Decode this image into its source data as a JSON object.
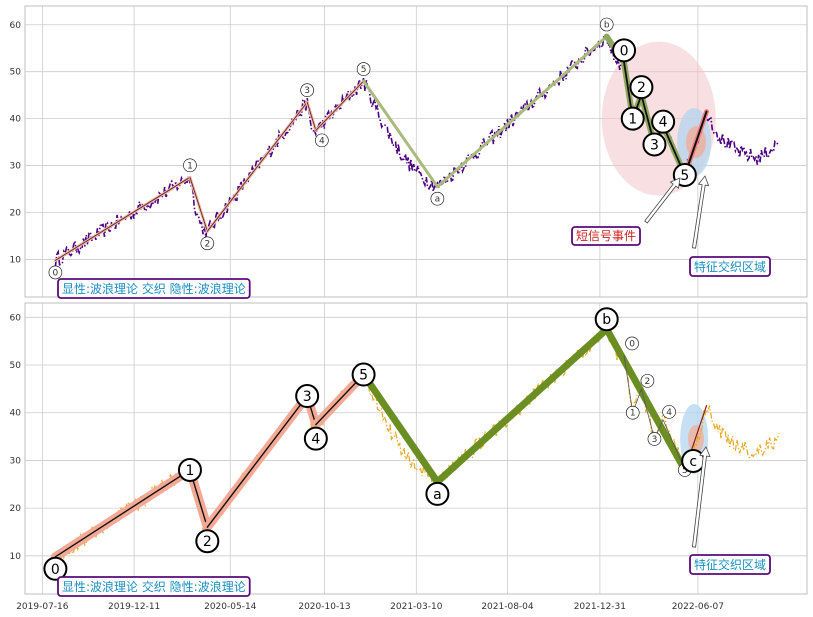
{
  "chart_data": [
    {
      "type": "line",
      "panel": "top",
      "ylim": [
        2,
        64
      ],
      "yticks": [
        10,
        20,
        30,
        40,
        50,
        60
      ],
      "grid": true,
      "price_color": "#4b0082",
      "price_style": "dash-dot",
      "waves": [
        {
          "label": "0",
          "x": "2019-08-06",
          "y": 9.8
        },
        {
          "label": "1",
          "x": "2020-03-10",
          "y": 27.5
        },
        {
          "label": "2",
          "x": "2020-04-07",
          "y": 16.0
        },
        {
          "label": "3",
          "x": "2020-09-15",
          "y": 43.5
        },
        {
          "label": "4",
          "x": "2020-09-29",
          "y": 37.5
        },
        {
          "label": "5",
          "x": "2020-12-15",
          "y": 48.0
        },
        {
          "label": "a",
          "x": "2021-04-13",
          "y": 25.5
        },
        {
          "label": "b",
          "x": "2022-01-11",
          "y": 57.5
        },
        {
          "label": "0",
          "x": "2022-02-08",
          "y": 52.0
        },
        {
          "label": "1",
          "x": "2022-02-22",
          "y": 40.0
        },
        {
          "label": "2",
          "x": "2022-03-08",
          "y": 45.0
        },
        {
          "label": "3",
          "x": "2022-03-29",
          "y": 34.5
        },
        {
          "label": "4",
          "x": "2022-04-12",
          "y": 38.5
        },
        {
          "label": "5",
          "x": "2022-05-17",
          "y": 28.0
        },
        {
          "label": "",
          "x": "2022-06-21",
          "y": 41.5
        }
      ],
      "annotations": [
        {
          "text": "短信号事件",
          "x": "2022-01-18",
          "y": 15.5,
          "text_color": "#cc2222",
          "border_color": "#5a0a7a"
        },
        {
          "text": "特征交织区域",
          "x": "2022-06-23",
          "y": 8.5,
          "text_color": "#1a8fc0",
          "border_color": "#5a0a7a"
        }
      ],
      "legend_text": "显性:波浪理论 交织 隐性:波浪理论",
      "legend_text_color": "#1a8fc0",
      "legend_position": "bottom-left"
    },
    {
      "type": "line",
      "panel": "bottom",
      "ylim": [
        2,
        63
      ],
      "yticks": [
        10,
        20,
        30,
        40,
        50,
        60
      ],
      "grid": true,
      "price_color": "#e8a820",
      "price_style": "dash-dot",
      "waves": [
        {
          "label": "0",
          "x": "2019-08-06",
          "y": 9.8
        },
        {
          "label": "1",
          "x": "2020-03-10",
          "y": 28.0
        },
        {
          "label": "2",
          "x": "2020-04-07",
          "y": 16.0
        },
        {
          "label": "3",
          "x": "2020-09-15",
          "y": 43.5
        },
        {
          "label": "4",
          "x": "2020-09-29",
          "y": 37.5
        },
        {
          "label": "5",
          "x": "2020-12-15",
          "y": 48.0
        },
        {
          "label": "a",
          "x": "2021-04-13",
          "y": 25.5
        },
        {
          "label": "b",
          "x": "2022-01-11",
          "y": 57.5
        },
        {
          "label": "0",
          "x": "2022-02-08",
          "y": 52.0
        },
        {
          "label": "1",
          "x": "2022-02-22",
          "y": 40.0
        },
        {
          "label": "2",
          "x": "2022-03-08",
          "y": 45.0
        },
        {
          "label": "3",
          "x": "2022-03-29",
          "y": 34.5
        },
        {
          "label": "4",
          "x": "2022-04-12",
          "y": 38.5
        },
        {
          "label": "5",
          "x": "2022-05-17",
          "y": 28.0
        },
        {
          "label": "c",
          "x": "2022-05-24",
          "y": 28.0
        },
        {
          "label": "",
          "x": "2022-06-21",
          "y": 41.5
        }
      ],
      "annotations": [
        {
          "text": "特征交织区域",
          "x": "2022-06-23",
          "y": 8.5,
          "text_color": "#1a8fc0",
          "border_color": "#5a0a7a"
        }
      ],
      "legend_text": "显性:波浪理论 交织 隐性:波浪理论",
      "legend_text_color": "#1a8fc0",
      "legend_position": "bottom-left",
      "xticks": [
        "2019-07-16",
        "2019-12-11",
        "2020-05-14",
        "2020-10-13",
        "2021-03-10",
        "2021-08-04",
        "2021-12-31",
        "2022-06-07"
      ]
    }
  ]
}
